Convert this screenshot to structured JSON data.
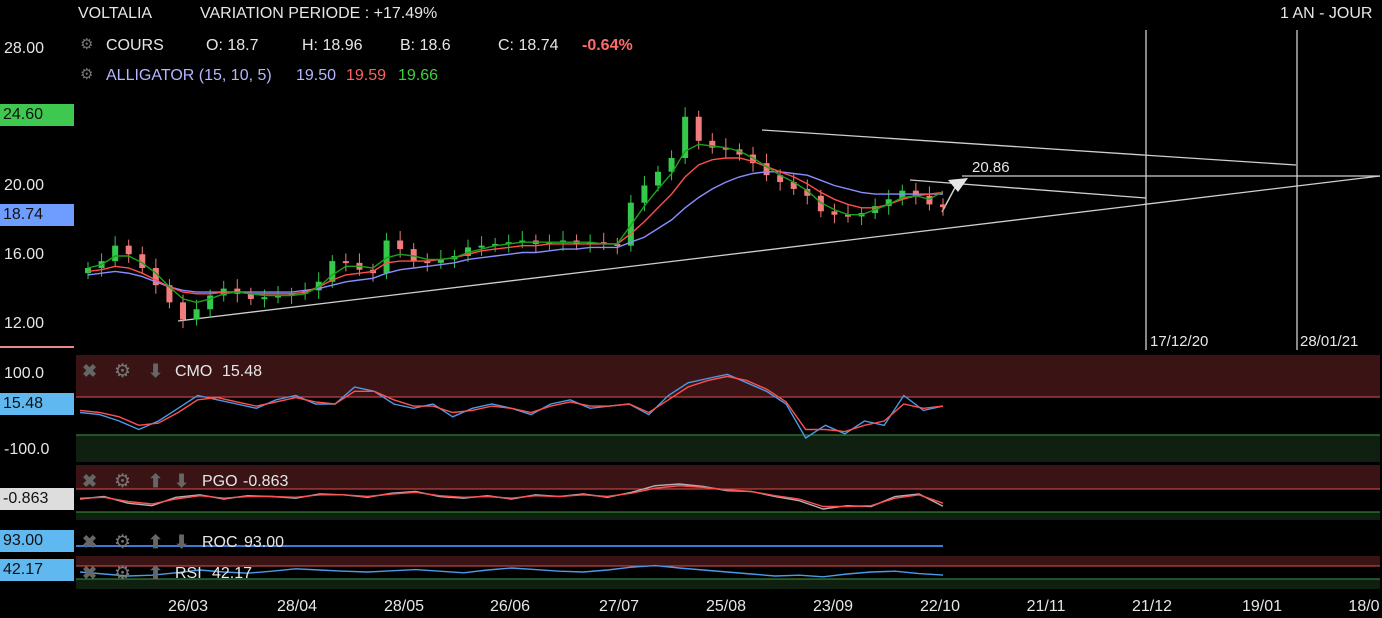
{
  "header": {
    "name": "VOLTALIA",
    "variation": "VARIATION PERIODE : +17.49%",
    "period": "1 AN - JOUR"
  },
  "quote": {
    "label": "COURS",
    "o": "O: 18.7",
    "h": "H: 18.96",
    "b": "B: 18.6",
    "c": "C: 18.74",
    "change": "-0.64%"
  },
  "alligator": {
    "label": "ALLIGATOR (15, 10, 5)",
    "v1": "19.50",
    "v2": "19.59",
    "v3": "19.66"
  },
  "colors": {
    "up": "#34c94a",
    "down": "#f07c7c",
    "jaw": "#8a8cff",
    "teeth": "#ff4d4d",
    "lips": "#19a319",
    "trend": "#cfcfcf",
    "tag_green": "#3fc84f",
    "tag_blue": "#6e9cff",
    "tag_cyan": "#5fb8ef"
  },
  "chart_data": {
    "type": "line",
    "title": "",
    "x_ticks": [
      "26/03",
      "28/04",
      "28/05",
      "26/06",
      "27/07",
      "25/08",
      "23/09",
      "22/10",
      "21/11",
      "21/12",
      "19/01",
      "18/0"
    ],
    "y_ticks": [
      "28.00",
      "20.00",
      "16.00",
      "12.00"
    ],
    "ylim": [
      10.5,
      29
    ],
    "price_tags": [
      "24.60",
      "18.74"
    ],
    "price_tag_values": [
      24.6,
      18.74
    ],
    "close": [
      15.2,
      15.6,
      16.5,
      16.0,
      15.2,
      14.2,
      13.2,
      12.2,
      12.8,
      13.6,
      14.0,
      13.7,
      13.4,
      13.5,
      13.6,
      13.7,
      13.9,
      14.4,
      15.6,
      15.5,
      15.1,
      14.9,
      16.8,
      16.3,
      15.6,
      15.5,
      15.7,
      15.9,
      16.4,
      16.5,
      16.6,
      16.7,
      16.8,
      16.6,
      16.7,
      16.8,
      16.6,
      16.7,
      16.6,
      16.5,
      19.0,
      20.0,
      20.8,
      21.6,
      24.0,
      22.6,
      22.2,
      22.1,
      21.8,
      21.3,
      20.6,
      20.2,
      19.8,
      19.4,
      18.5,
      18.3,
      18.2,
      18.4,
      18.8,
      19.2,
      19.7,
      19.4,
      18.9,
      18.74
    ],
    "jaw": [
      14.8,
      14.9,
      15.0,
      14.9,
      14.7,
      14.4,
      14.1,
      13.9,
      13.8,
      13.8,
      13.8,
      13.8,
      13.8,
      13.8,
      13.8,
      13.8,
      13.9,
      14.0,
      14.2,
      14.4,
      14.5,
      14.6,
      14.9,
      15.1,
      15.2,
      15.3,
      15.4,
      15.5,
      15.7,
      15.8,
      15.9,
      16.0,
      16.1,
      16.1,
      16.2,
      16.3,
      16.3,
      16.4,
      16.4,
      16.4,
      16.7,
      17.0,
      17.5,
      18.0,
      18.7,
      19.3,
      19.8,
      20.2,
      20.5,
      20.7,
      20.8,
      20.8,
      20.7,
      20.6,
      20.3,
      20.0,
      19.8,
      19.6,
      19.5,
      19.5,
      19.5,
      19.5,
      19.5,
      19.5
    ],
    "teeth": [
      15.0,
      15.1,
      15.3,
      15.2,
      14.9,
      14.5,
      14.1,
      13.8,
      13.7,
      13.7,
      13.8,
      13.8,
      13.7,
      13.7,
      13.7,
      13.7,
      13.8,
      14.1,
      14.5,
      14.8,
      14.9,
      15.0,
      15.5,
      15.6,
      15.6,
      15.6,
      15.7,
      15.8,
      16.0,
      16.2,
      16.3,
      16.4,
      16.5,
      16.5,
      16.6,
      16.6,
      16.6,
      16.6,
      16.6,
      16.6,
      17.2,
      17.9,
      18.7,
      19.5,
      20.5,
      21.2,
      21.5,
      21.6,
      21.6,
      21.4,
      21.1,
      20.8,
      20.5,
      20.1,
      19.6,
      19.2,
      18.9,
      18.7,
      18.7,
      18.9,
      19.2,
      19.4,
      19.5,
      19.59
    ],
    "lips": [
      15.2,
      15.4,
      15.9,
      15.9,
      15.5,
      14.9,
      14.1,
      13.4,
      13.2,
      13.4,
      13.7,
      13.8,
      13.7,
      13.6,
      13.6,
      13.6,
      13.7,
      14.1,
      14.8,
      15.3,
      15.3,
      15.2,
      15.8,
      16.0,
      15.9,
      15.7,
      15.7,
      15.8,
      16.1,
      16.3,
      16.5,
      16.6,
      16.7,
      16.7,
      16.7,
      16.7,
      16.7,
      16.7,
      16.6,
      16.6,
      17.7,
      18.8,
      19.8,
      20.7,
      22.0,
      22.4,
      22.3,
      22.2,
      22.0,
      21.6,
      21.1,
      20.6,
      20.2,
      19.7,
      19.0,
      18.6,
      18.3,
      18.3,
      18.6,
      18.9,
      19.3,
      19.4,
      19.2,
      19.66
    ],
    "annotations": [
      {
        "label": "20.86",
        "value": 20.86
      },
      {
        "label": "17/12/20"
      },
      {
        "label": "28/01/21"
      }
    ]
  },
  "indicators": {
    "cmo": {
      "label": "CMO",
      "value": "15.48",
      "ticks": [
        "100.0",
        "-100.0"
      ],
      "tag": "15.48",
      "ylim": [
        -100,
        100
      ],
      "upper": 50,
      "lower": -50,
      "line": [
        0,
        -5,
        -20,
        -40,
        -20,
        10,
        40,
        30,
        20,
        10,
        30,
        40,
        20,
        20,
        60,
        50,
        20,
        10,
        20,
        -10,
        10,
        20,
        10,
        -5,
        20,
        30,
        10,
        15,
        20,
        -5,
        40,
        70,
        80,
        90,
        70,
        50,
        20,
        -60,
        -30,
        -50,
        -20,
        -30,
        40,
        5,
        15
      ],
      "signal": [
        5,
        0,
        -10,
        -30,
        -25,
        0,
        30,
        35,
        25,
        15,
        25,
        35,
        25,
        20,
        50,
        50,
        30,
        15,
        15,
        0,
        5,
        15,
        10,
        0,
        15,
        25,
        15,
        15,
        20,
        0,
        30,
        60,
        75,
        85,
        75,
        55,
        25,
        -40,
        -40,
        -45,
        -30,
        -20,
        20,
        10,
        15
      ]
    },
    "pgo": {
      "label": "PGO",
      "value": "-0.863",
      "tag": "-0.863",
      "ylim": [
        -3,
        3
      ],
      "upper": 1.5,
      "lower": -1.5,
      "line": [
        0,
        0.3,
        -0.5,
        -0.8,
        0.2,
        0.5,
        0,
        0.4,
        0.3,
        0.1,
        0.6,
        0.5,
        0.2,
        0.7,
        0.9,
        0.3,
        0.1,
        0.4,
        0,
        0.5,
        0.3,
        0.6,
        0.2,
        0.8,
        1.6,
        1.8,
        1.5,
        1.0,
        0.9,
        0.3,
        -0.2,
        -1.2,
        -0.8,
        -0.9,
        0.3,
        0.6,
        -0.863
      ],
      "signal": [
        0.1,
        0.2,
        -0.3,
        -0.6,
        0,
        0.4,
        0.1,
        0.3,
        0.3,
        0.2,
        0.5,
        0.5,
        0.3,
        0.6,
        0.8,
        0.4,
        0.2,
        0.3,
        0.1,
        0.4,
        0.3,
        0.5,
        0.3,
        0.7,
        1.3,
        1.6,
        1.4,
        1.1,
        0.9,
        0.4,
        0,
        -0.9,
        -0.9,
        -0.8,
        0.1,
        0.5,
        -0.5
      ]
    },
    "roc": {
      "label": "ROC",
      "value": "93.00",
      "tag": "93.00"
    },
    "rsi": {
      "label": "RSI",
      "value": "42.17",
      "tag": "42.17",
      "ylim": [
        0,
        100
      ],
      "upper": 70,
      "lower": 30,
      "line": [
        50,
        45,
        40,
        42,
        48,
        55,
        50,
        47,
        52,
        58,
        55,
        52,
        50,
        53,
        56,
        52,
        48,
        55,
        60,
        56,
        52,
        50,
        55,
        62,
        66,
        60,
        55,
        50,
        45,
        40,
        42,
        38,
        45,
        50,
        52,
        46,
        42.17
      ]
    }
  }
}
